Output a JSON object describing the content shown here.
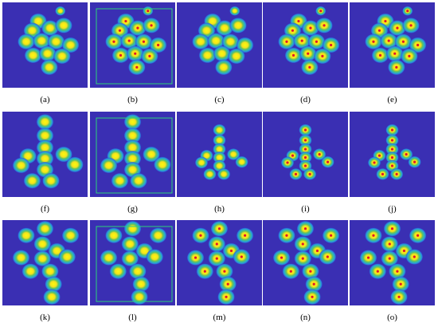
{
  "captions": [
    "(a)",
    "(b)",
    "(c)",
    "(d)",
    "(e)",
    "(f)",
    "(g)",
    "(h)",
    "(i)",
    "(j)",
    "(k)",
    "(l)",
    "(m)",
    "(n)",
    "(o)"
  ]
}
